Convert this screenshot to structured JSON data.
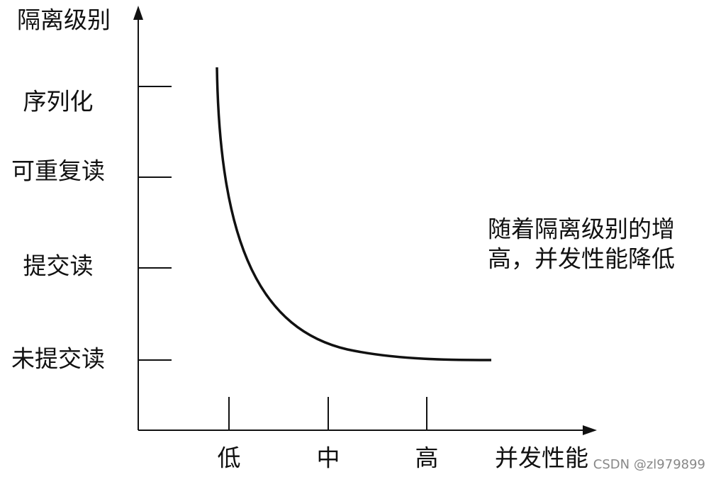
{
  "y_axis": {
    "title": "隔离级别",
    "levels": [
      "序列化",
      "可重复读",
      "提交读",
      "未提交读"
    ]
  },
  "x_axis": {
    "title": "并发性能",
    "levels": [
      "低",
      "中",
      "高"
    ]
  },
  "annotation": {
    "lines": [
      "随着隔离级别的增",
      "高，并发性能降低"
    ]
  },
  "watermark": "CSDN @zl979899"
}
